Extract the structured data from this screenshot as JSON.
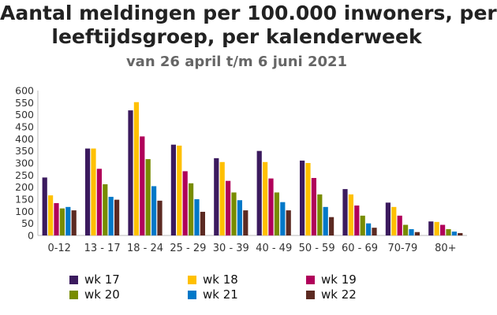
{
  "header": {
    "title_line1": "Aantal meldingen per 100.000 inwoners, per",
    "title_line2": "leeftijdsgroep, per kalenderweek",
    "subtitle": "van 26 april t/m 6 juni 2021"
  },
  "chart_data": {
    "type": "bar",
    "title": "Aantal meldingen per 100.000 inwoners, per leeftijdsgroep, per kalenderweek",
    "subtitle": "van 26 april t/m 6 juni 2021",
    "xlabel": "",
    "ylabel": "",
    "ylim": [
      0,
      600
    ],
    "yticks": [
      0,
      50,
      100,
      150,
      200,
      250,
      300,
      350,
      400,
      450,
      500,
      550,
      600
    ],
    "grid": false,
    "legend_position": "bottom",
    "categories": [
      "0-12",
      "13 - 17",
      "18 - 24",
      "25 - 29",
      "30 - 39",
      "40 - 49",
      "50 - 59",
      "60 - 69",
      "70-79",
      "80+"
    ],
    "series": [
      {
        "name": "wk 17",
        "color": "#3b1a5e",
        "values": [
          240,
          360,
          518,
          376,
          320,
          350,
          310,
          192,
          136,
          58
        ]
      },
      {
        "name": "wk 18",
        "color": "#ffc000",
        "values": [
          166,
          360,
          552,
          372,
          304,
          304,
          300,
          170,
          118,
          56
        ]
      },
      {
        "name": "wk 19",
        "color": "#b0005a",
        "values": [
          134,
          276,
          410,
          266,
          226,
          236,
          238,
          124,
          82,
          44
        ]
      },
      {
        "name": "wk 20",
        "color": "#788c00",
        "values": [
          112,
          212,
          316,
          216,
          178,
          178,
          170,
          82,
          44,
          26
        ]
      },
      {
        "name": "wk 21",
        "color": "#0078c8",
        "values": [
          118,
          160,
          204,
          150,
          146,
          138,
          118,
          50,
          26,
          16
        ]
      },
      {
        "name": "wk 22",
        "color": "#5c2a22",
        "values": [
          104,
          148,
          144,
          98,
          104,
          104,
          76,
          32,
          14,
          10
        ]
      }
    ]
  }
}
